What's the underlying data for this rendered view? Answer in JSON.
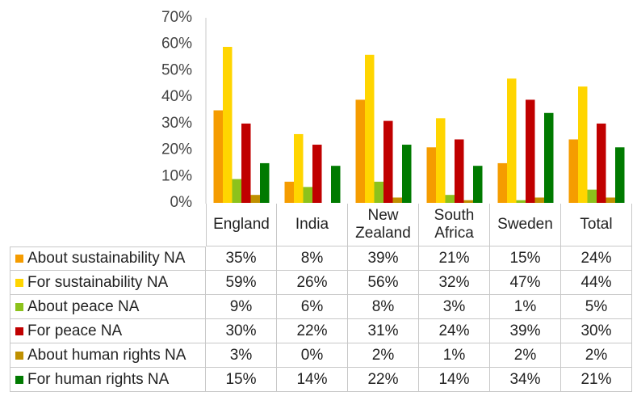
{
  "chart_data": {
    "type": "bar",
    "categories": [
      "England",
      "India",
      "New Zealand",
      "South Africa",
      "Sweden",
      "Total"
    ],
    "series": [
      {
        "name": "About sustainability NA",
        "color": "#f59c00",
        "values": [
          35,
          8,
          39,
          21,
          15,
          24
        ],
        "value_labels": [
          "35%",
          "8%",
          "39%",
          "21%",
          "15%",
          "24%"
        ]
      },
      {
        "name": "For sustainability NA",
        "color": "#ffd500",
        "values": [
          59,
          26,
          56,
          32,
          47,
          44
        ],
        "value_labels": [
          "59%",
          "26%",
          "56%",
          "32%",
          "47%",
          "44%"
        ]
      },
      {
        "name": "About peace NA",
        "color": "#8cc21c",
        "values": [
          9,
          6,
          8,
          3,
          1,
          5
        ],
        "value_labels": [
          "9%",
          "6%",
          "8%",
          "3%",
          "1%",
          "5%"
        ]
      },
      {
        "name": "For peace NA",
        "color": "#c00000",
        "values": [
          30,
          22,
          31,
          24,
          39,
          30
        ],
        "value_labels": [
          "30%",
          "22%",
          "31%",
          "24%",
          "39%",
          "30%"
        ]
      },
      {
        "name": "About human rights NA",
        "color": "#bf9000",
        "values": [
          3,
          0,
          2,
          1,
          2,
          2
        ],
        "value_labels": [
          "3%",
          "0%",
          "2%",
          "1%",
          "2%",
          "2%"
        ]
      },
      {
        "name": "For human rights NA",
        "color": "#007a00",
        "values": [
          15,
          14,
          22,
          14,
          34,
          21
        ],
        "value_labels": [
          "15%",
          "14%",
          "22%",
          "14%",
          "34%",
          "21%"
        ]
      }
    ],
    "ylim": [
      0,
      70
    ],
    "yticks": [
      {
        "value": 0,
        "label": "0%"
      },
      {
        "value": 10,
        "label": "10%"
      },
      {
        "value": 20,
        "label": "20%"
      },
      {
        "value": 30,
        "label": "30%"
      },
      {
        "value": 40,
        "label": "40%"
      },
      {
        "value": 50,
        "label": "50%"
      },
      {
        "value": 60,
        "label": "60%"
      },
      {
        "value": 70,
        "label": "70%"
      }
    ],
    "grid": false
  }
}
